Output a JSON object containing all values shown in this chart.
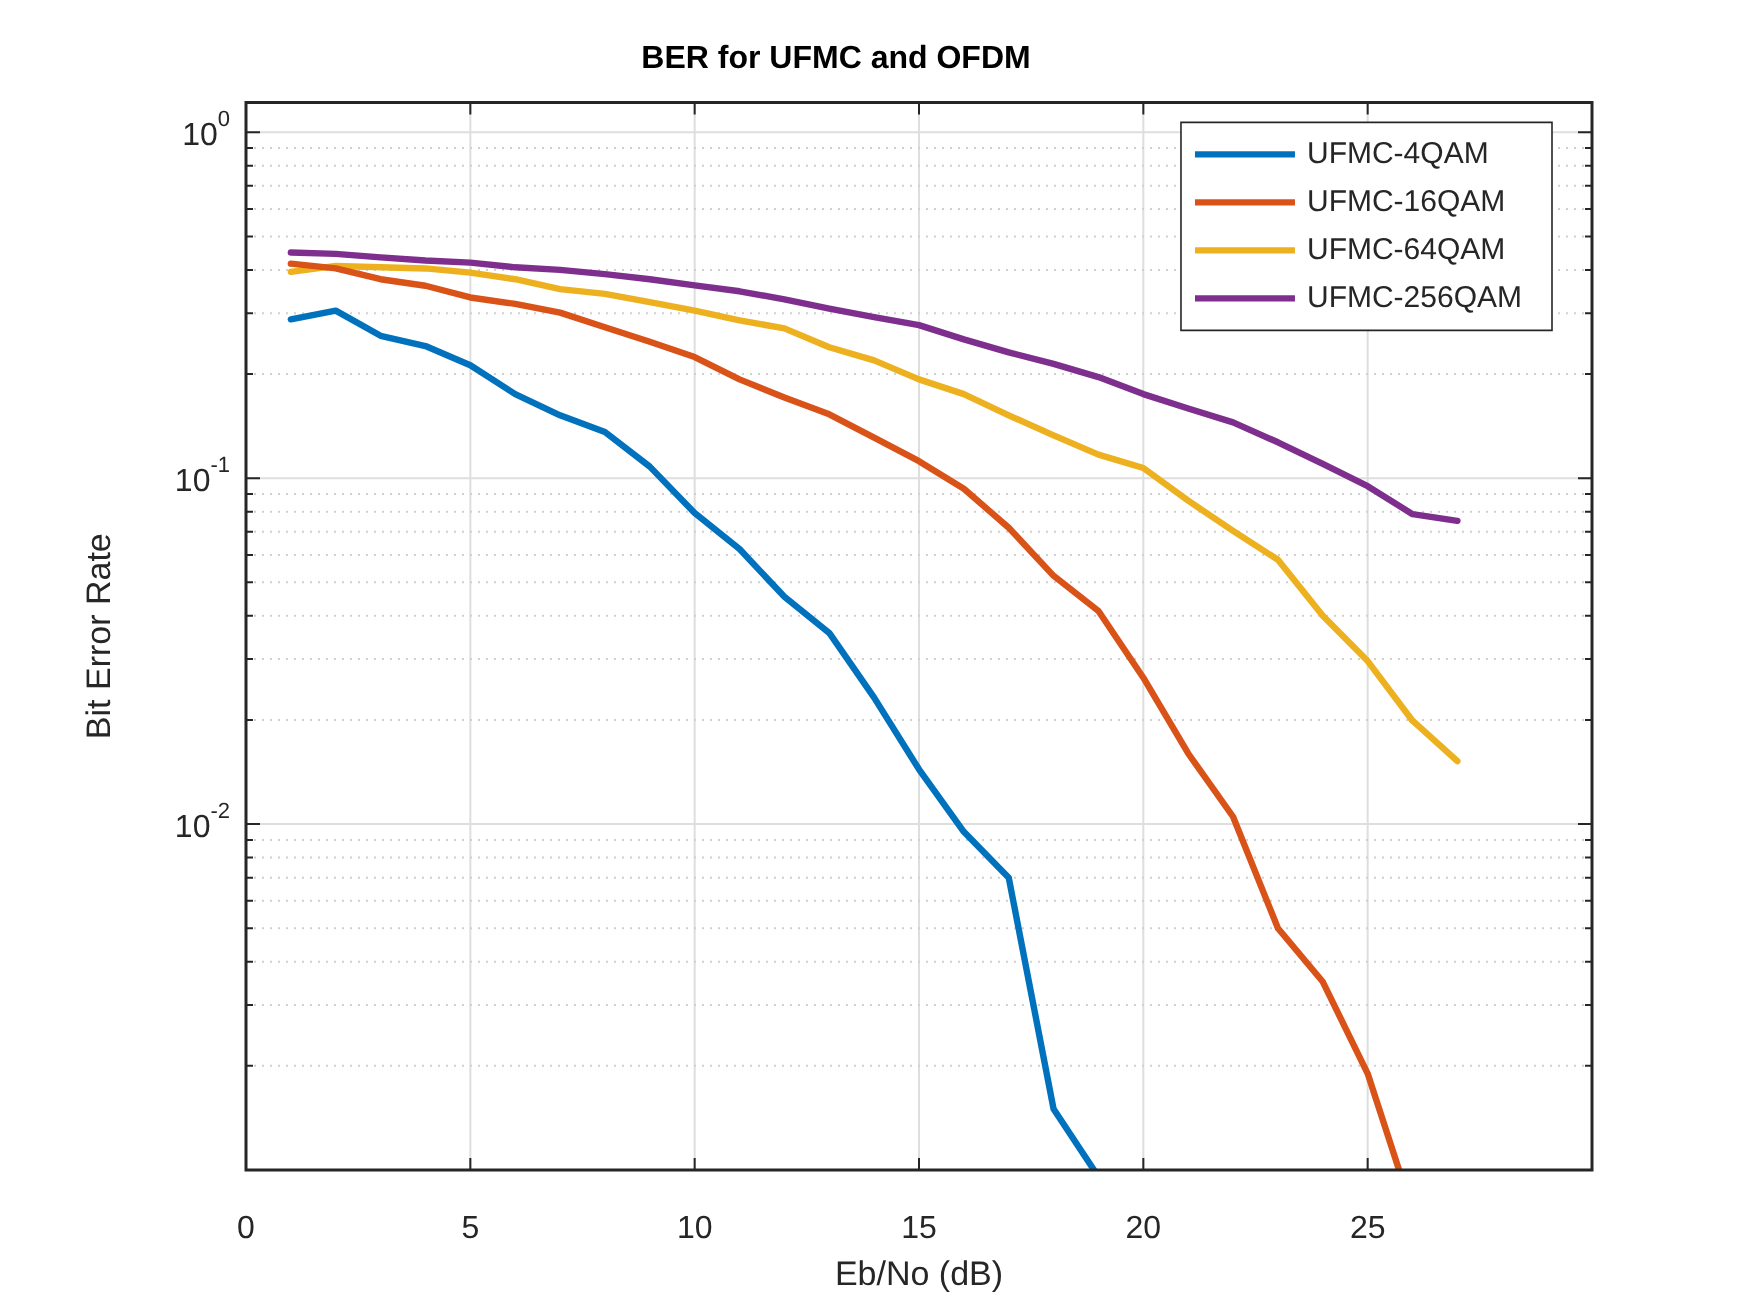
{
  "chart_data": {
    "type": "line",
    "title": "BER for UFMC and OFDM",
    "xlabel": "Eb/No (dB)",
    "ylabel": "Bit Error Rate",
    "x": [
      1,
      2,
      3,
      4,
      5,
      6,
      7,
      8,
      9,
      10,
      11,
      12,
      13,
      14,
      15,
      16,
      17,
      18,
      19,
      20,
      21,
      22,
      23,
      24,
      25,
      26,
      27
    ],
    "series": [
      {
        "name": "UFMC-4QAM",
        "color": "#0072bd",
        "x": [
          1,
          2,
          3,
          4,
          5,
          6,
          7,
          8,
          9,
          10,
          11,
          12,
          13,
          14,
          15,
          16,
          17,
          18,
          18.9
        ],
        "values": [
          0.288,
          0.305,
          0.258,
          0.241,
          0.212,
          0.175,
          0.152,
          0.136,
          0.108,
          0.0793,
          0.0624,
          0.0454,
          0.0357,
          0.0232,
          0.0144,
          0.0095,
          0.007,
          0.0015,
          0.001
        ]
      },
      {
        "name": "UFMC-16QAM",
        "color": "#d95319",
        "x": [
          1,
          2,
          3,
          4,
          5,
          6,
          7,
          8,
          9,
          10,
          11,
          12,
          13,
          14,
          15,
          16,
          17,
          18,
          19,
          20,
          21,
          22,
          23,
          24,
          25,
          25.7
        ],
        "values": [
          0.417,
          0.404,
          0.376,
          0.36,
          0.333,
          0.319,
          0.301,
          0.273,
          0.248,
          0.224,
          0.193,
          0.171,
          0.153,
          0.131,
          0.112,
          0.0932,
          0.0719,
          0.0522,
          0.0413,
          0.0265,
          0.016,
          0.0105,
          0.005,
          0.0035,
          0.0019,
          0.001
        ]
      },
      {
        "name": "UFMC-64QAM",
        "color": "#edb120",
        "values": [
          0.395,
          0.411,
          0.407,
          0.404,
          0.393,
          0.376,
          0.352,
          0.341,
          0.323,
          0.305,
          0.286,
          0.271,
          0.239,
          0.219,
          0.193,
          0.175,
          0.152,
          0.133,
          0.117,
          0.107,
          0.0861,
          0.0704,
          0.0581,
          0.04,
          0.0296,
          0.0199,
          0.0152
        ]
      },
      {
        "name": "UFMC-256QAM",
        "color": "#7e2f8e",
        "values": [
          0.449,
          0.445,
          0.435,
          0.426,
          0.42,
          0.407,
          0.4,
          0.389,
          0.376,
          0.361,
          0.347,
          0.329,
          0.309,
          0.292,
          0.277,
          0.252,
          0.231,
          0.214,
          0.196,
          0.175,
          0.159,
          0.145,
          0.127,
          0.11,
          0.0948,
          0.0787,
          0.0753
        ]
      }
    ],
    "xlim": [
      0,
      30
    ],
    "xticks": [
      0,
      5,
      10,
      15,
      20,
      25
    ],
    "ylim": [
      0.001,
      1.22
    ],
    "yticks": [
      {
        "value": 0.002,
        "label": null
      },
      {
        "value": 0.003,
        "label": null
      },
      {
        "value": 0.004,
        "label": null
      },
      {
        "value": 0.005,
        "label": null
      },
      {
        "value": 0.006,
        "label": null
      },
      {
        "value": 0.007,
        "label": null
      },
      {
        "value": 0.008,
        "label": null
      },
      {
        "value": 0.009,
        "label": null
      },
      {
        "value": 0.01,
        "label": "10$^{-2}$"
      },
      {
        "value": 0.02,
        "label": null
      },
      {
        "value": 0.03,
        "label": null
      },
      {
        "value": 0.04,
        "label": null
      },
      {
        "value": 0.05,
        "label": null
      },
      {
        "value": 0.06,
        "label": null
      },
      {
        "value": 0.07,
        "label": null
      },
      {
        "value": 0.08,
        "label": null
      },
      {
        "value": 0.09,
        "label": null
      },
      {
        "value": 0.1,
        "label": "10$^{-1}$"
      },
      {
        "value": 0.2,
        "label": null
      },
      {
        "value": 0.3,
        "label": null
      },
      {
        "value": 0.4,
        "label": null
      },
      {
        "value": 0.5,
        "label": null
      },
      {
        "value": 0.6,
        "label": null
      },
      {
        "value": 0.7,
        "label": null
      },
      {
        "value": 0.8,
        "label": null
      },
      {
        "value": 0.9,
        "label": null
      },
      {
        "value": 1,
        "label": "10$^{0}$"
      }
    ],
    "log": "y",
    "grid": true,
    "legend": "top right"
  }
}
